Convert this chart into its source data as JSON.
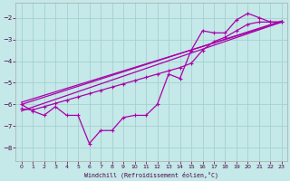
{
  "bg_color": "#c5e8e8",
  "grid_color": "#9ecece",
  "line_color": "#aa00aa",
  "xlim": [
    -0.5,
    23.5
  ],
  "ylim": [
    -8.6,
    -1.3
  ],
  "xticks": [
    0,
    1,
    2,
    3,
    4,
    5,
    6,
    7,
    8,
    9,
    10,
    11,
    12,
    13,
    14,
    15,
    16,
    17,
    18,
    19,
    20,
    21,
    22,
    23
  ],
  "yticks": [
    -8,
    -7,
    -6,
    -5,
    -4,
    -3,
    -2
  ],
  "xlabel": "Windchill (Refroidissement éolien,°C)",
  "line1_x": [
    0,
    1,
    2,
    3,
    4,
    5,
    6,
    7,
    8,
    9,
    10,
    11,
    12,
    13,
    14,
    15,
    16,
    17,
    18,
    19,
    20,
    21,
    22,
    23
  ],
  "line1_y": [
    -6.0,
    -6.3,
    -6.5,
    -6.1,
    -6.5,
    -6.5,
    -7.8,
    -7.2,
    -7.2,
    -6.6,
    -6.5,
    -6.5,
    -6.0,
    -4.6,
    -4.8,
    -3.5,
    -2.6,
    -2.7,
    -2.7,
    -2.1,
    -1.8,
    -2.0,
    -2.2,
    -2.2
  ],
  "line2_x": [
    0,
    1,
    2,
    3,
    4,
    5,
    6,
    7,
    8,
    9,
    10,
    11,
    12,
    13,
    14,
    15,
    16,
    17,
    18,
    19,
    20,
    21,
    22,
    23
  ],
  "line2_y": [
    -6.2,
    -6.25,
    -6.1,
    -5.95,
    -5.8,
    -5.65,
    -5.5,
    -5.35,
    -5.2,
    -5.05,
    -4.9,
    -4.75,
    -4.6,
    -4.45,
    -4.3,
    -4.1,
    -3.5,
    -3.1,
    -2.9,
    -2.6,
    -2.3,
    -2.2,
    -2.2,
    -2.2
  ],
  "line3_x": [
    0,
    23
  ],
  "line3_y": [
    -6.3,
    -2.2
  ],
  "line4_x": [
    0,
    23
  ],
  "line4_y": [
    -5.9,
    -2.2
  ],
  "line5_x": [
    0,
    23
  ],
  "line5_y": [
    -6.0,
    -2.15
  ]
}
